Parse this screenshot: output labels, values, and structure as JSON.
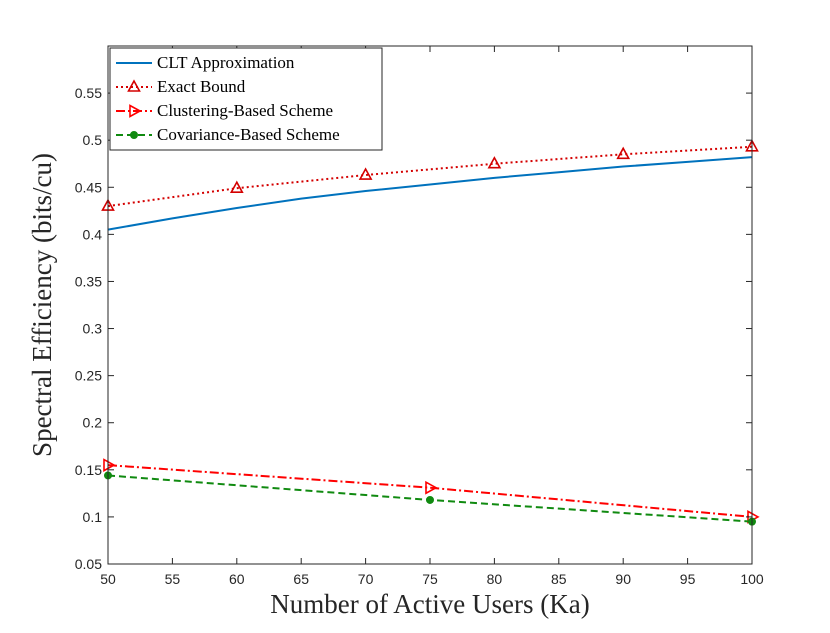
{
  "chart_data": {
    "type": "line",
    "title": "",
    "xlabel": "Number of Active Users (Ka)",
    "ylabel": "Spectral Efficiency (bits/cu)",
    "xlim": [
      50,
      100
    ],
    "ylim": [
      0.05,
      0.6
    ],
    "xticks": [
      50,
      55,
      60,
      65,
      70,
      75,
      80,
      85,
      90,
      95,
      100
    ],
    "yticks": [
      0.05,
      0.1,
      0.15,
      0.2,
      0.25,
      0.3,
      0.35,
      0.4,
      0.45,
      0.5,
      0.55
    ],
    "xtick_labels": [
      "50",
      "55",
      "60",
      "65",
      "70",
      "75",
      "80",
      "85",
      "90",
      "95",
      "100"
    ],
    "ytick_labels": [
      "0.05",
      "0.1",
      "0.15",
      "0.2",
      "0.25",
      "0.3",
      "0.35",
      "0.4",
      "0.45",
      "0.5",
      "0.55"
    ],
    "grid": false,
    "legend_position": "top-left",
    "series": [
      {
        "name": "CLT Approximation",
        "color": "#0072bd",
        "line_style": "solid",
        "marker": "none",
        "x": [
          50,
          55,
          60,
          65,
          70,
          75,
          80,
          85,
          90,
          95,
          100
        ],
        "y": [
          0.405,
          0.417,
          0.428,
          0.438,
          0.446,
          0.453,
          0.46,
          0.466,
          0.472,
          0.477,
          0.482
        ]
      },
      {
        "name": "Exact Bound",
        "color": "#d40000",
        "line_style": "dotted",
        "marker": "triangle-up",
        "x": [
          50,
          60,
          70,
          80,
          90,
          100
        ],
        "y": [
          0.43,
          0.449,
          0.463,
          0.475,
          0.485,
          0.493
        ]
      },
      {
        "name": "Clustering-Based Scheme",
        "color": "#ff0000",
        "line_style": "dashdot",
        "marker": "triangle-right",
        "x": [
          50,
          75,
          100
        ],
        "y": [
          0.155,
          0.131,
          0.1
        ]
      },
      {
        "name": "Covariance-Based Scheme",
        "color": "#108a10",
        "line_style": "dashed",
        "marker": "circle",
        "x": [
          50,
          75,
          100
        ],
        "y": [
          0.144,
          0.118,
          0.095
        ]
      }
    ]
  }
}
